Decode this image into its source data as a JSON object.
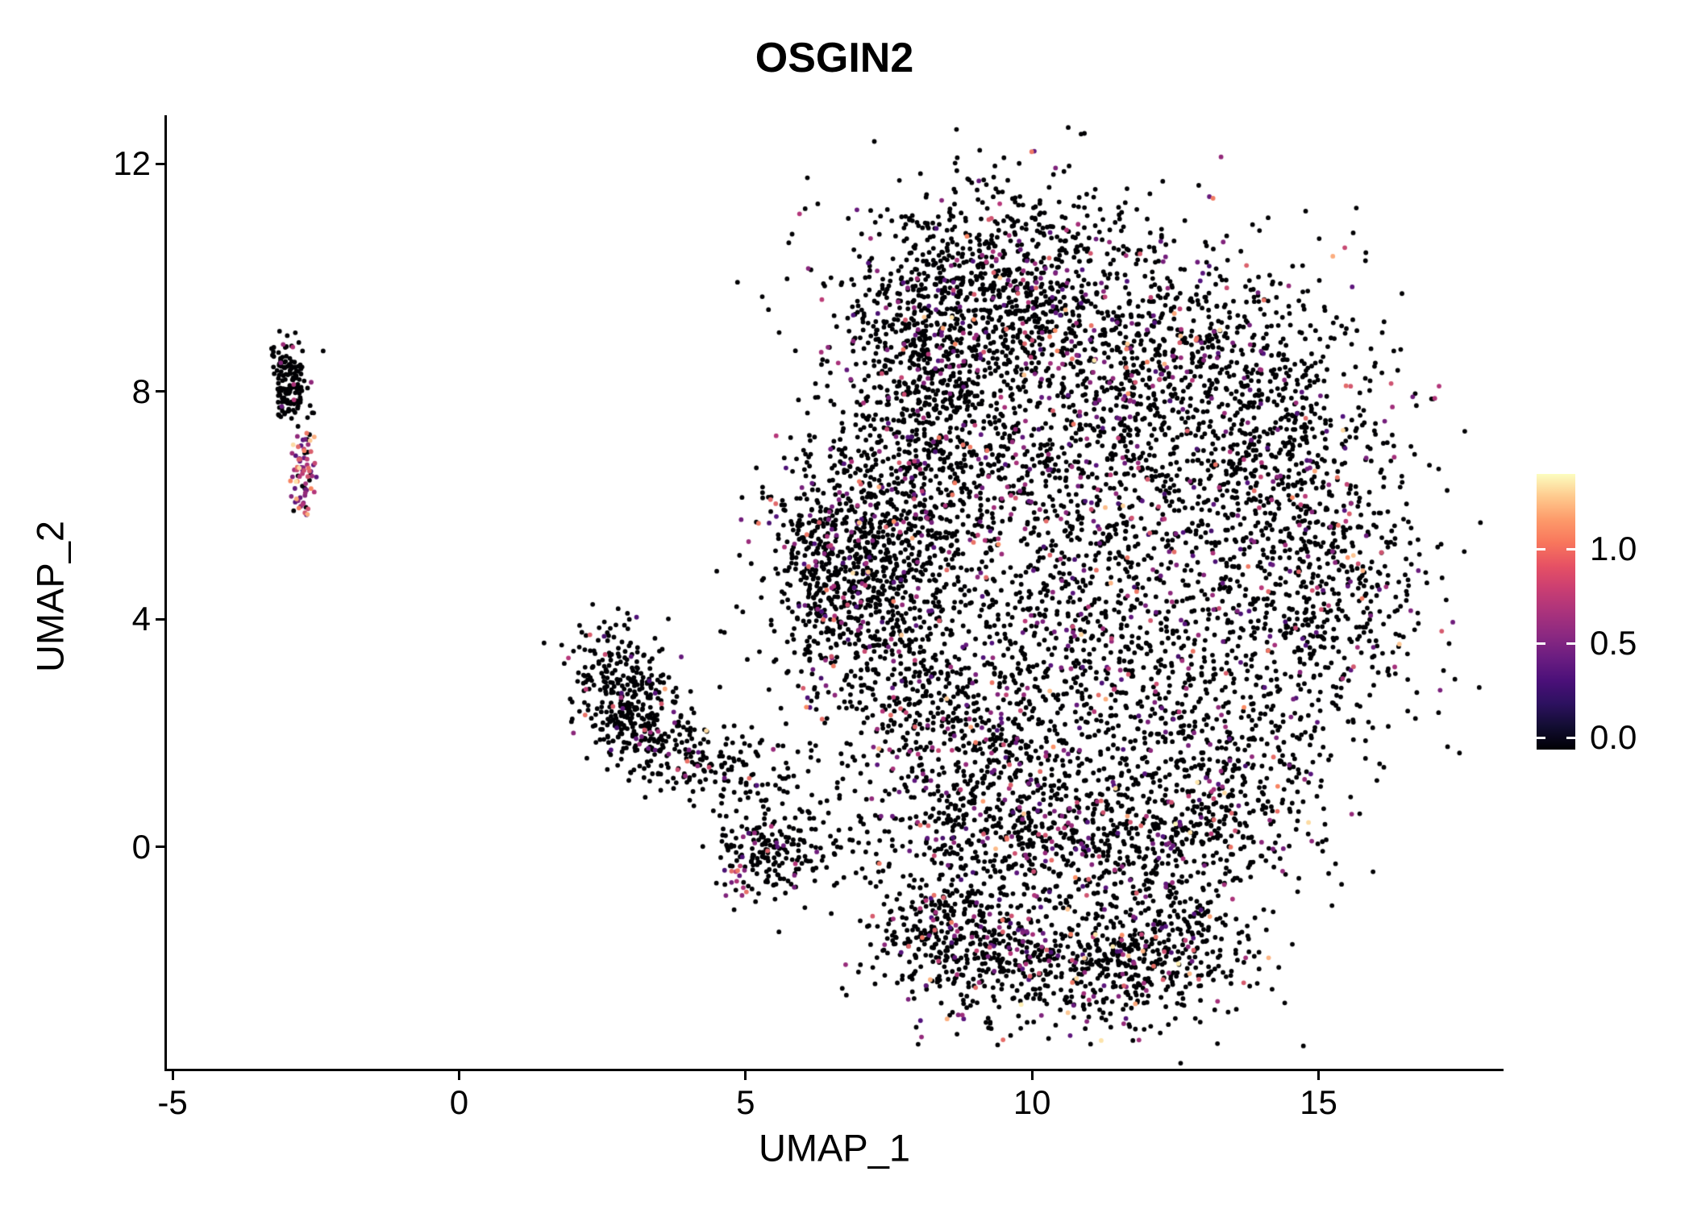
{
  "chart_data": {
    "type": "scatter",
    "title": "OSGIN2",
    "xlabel": "UMAP_1",
    "ylabel": "UMAP_2",
    "grid": false,
    "legend_position": "right",
    "xlim": [
      -5.1,
      18.2
    ],
    "ylim": [
      -3.9,
      12.85
    ],
    "x_ticks": {
      "values": [
        -5,
        0,
        5,
        10,
        15
      ],
      "labels": [
        "-5",
        "0",
        "5",
        "10",
        "15"
      ]
    },
    "y_ticks": {
      "values": [
        12,
        8,
        4,
        0
      ],
      "labels": [
        "12",
        "8",
        "4",
        "0"
      ]
    },
    "point_radius": 2.9,
    "seed": 42,
    "colormap": {
      "name": "magma",
      "vmax": 1.4,
      "anchors": [
        [
          0.0,
          "#000004"
        ],
        [
          0.25,
          "#51127C"
        ],
        [
          0.5,
          "#B63679"
        ],
        [
          0.75,
          "#FB8861"
        ],
        [
          1.0,
          "#FCFDBF"
        ]
      ]
    },
    "colorbar": {
      "labels": [
        "1.0",
        "0.5",
        "0.0"
      ],
      "values": [
        1.0,
        0.5,
        0.0
      ],
      "gradient": [
        "#FCFDBF",
        "#FEC98D",
        "#FD9A6A",
        "#F8765C",
        "#E65164",
        "#CA3E72",
        "#AB337C",
        "#8C2981",
        "#6B1D81",
        "#4B1079",
        "#2D1160",
        "#120D32",
        "#000004"
      ]
    },
    "expr_profiles": {
      "main": [
        [
          0.868,
          0,
          0
        ],
        [
          0.09,
          0.3,
          0.65
        ],
        [
          0.032,
          0.65,
          1.0
        ],
        [
          0.01,
          1.0,
          1.38
        ]
      ],
      "low": [
        [
          0.93,
          0,
          0
        ],
        [
          0.05,
          0.3,
          0.6
        ],
        [
          0.015,
          0.6,
          1.0
        ],
        [
          0.005,
          1.0,
          1.3
        ]
      ],
      "sparse0": [
        [
          0.95,
          0,
          0
        ],
        [
          0.03,
          0.3,
          0.6
        ],
        [
          0.015,
          0.6,
          1.0
        ],
        [
          0.005,
          1.0,
          1.3
        ]
      ],
      "high": [
        [
          0.22,
          0,
          0
        ],
        [
          0.55,
          0.35,
          0.7
        ],
        [
          0.17,
          0.7,
          1.05
        ],
        [
          0.06,
          1.05,
          1.38
        ]
      ]
    },
    "clusters": [
      {
        "name": "left-top",
        "cx": -2.97,
        "cy": 8.15,
        "sx": 0.16,
        "sy": 0.42,
        "rot": 10,
        "n": 150,
        "profile": "sparse0"
      },
      {
        "name": "left-tail",
        "cx": -2.73,
        "cy": 6.55,
        "sx": 0.12,
        "sy": 0.38,
        "rot": 0,
        "n": 75,
        "profile": "high"
      },
      {
        "name": "mid-a",
        "cx": 2.8,
        "cy": 2.7,
        "sx": 0.42,
        "sy": 0.6,
        "rot": 15,
        "n": 270,
        "profile": "low"
      },
      {
        "name": "mid-b",
        "cx": 3.6,
        "cy": 1.85,
        "sx": 0.8,
        "sy": 0.38,
        "rot": -28,
        "n": 210,
        "profile": "low"
      },
      {
        "name": "mid-bridge",
        "cx": 5.0,
        "cy": 1.3,
        "sx": 0.8,
        "sy": 0.35,
        "rot": -10,
        "n": 80,
        "profile": "low"
      },
      {
        "name": "small-bottom",
        "cx": 5.45,
        "cy": -0.1,
        "sx": 0.5,
        "sy": 0.35,
        "rot": 0,
        "n": 180,
        "profile": "low"
      },
      {
        "name": "magenta-spot",
        "cx": 4.85,
        "cy": -0.6,
        "sx": 0.12,
        "sy": 0.14,
        "rot": 0,
        "n": 15,
        "profile": "high"
      },
      {
        "name": "main-upper",
        "cx": 9.6,
        "cy": 9.9,
        "sx": 1.35,
        "sy": 0.95,
        "rot": 0,
        "n": 900,
        "profile": "main"
      },
      {
        "name": "main-upper-left",
        "cx": 8.2,
        "cy": 8.7,
        "sx": 0.85,
        "sy": 0.85,
        "rot": 0,
        "n": 420,
        "profile": "main"
      },
      {
        "name": "main-upper-right",
        "cx": 12.3,
        "cy": 8.4,
        "sx": 1.4,
        "sy": 1.1,
        "rot": 0,
        "n": 600,
        "profile": "main"
      },
      {
        "name": "main-left-upper",
        "cx": 7.9,
        "cy": 6.3,
        "sx": 0.9,
        "sy": 1.15,
        "rot": 0,
        "n": 570,
        "profile": "main"
      },
      {
        "name": "main-left-arm",
        "cx": 6.6,
        "cy": 5.1,
        "sx": 0.65,
        "sy": 0.85,
        "rot": 0,
        "n": 470,
        "profile": "main"
      },
      {
        "name": "main-left-mid",
        "cx": 7.3,
        "cy": 3.6,
        "sx": 0.8,
        "sy": 0.95,
        "rot": 0,
        "n": 380,
        "profile": "main"
      },
      {
        "name": "main-center",
        "cx": 10.3,
        "cy": 6.1,
        "sx": 1.45,
        "sy": 1.4,
        "rot": 0,
        "n": 750,
        "profile": "main"
      },
      {
        "name": "main-right-upper",
        "cx": 14.0,
        "cy": 6.9,
        "sx": 1.3,
        "sy": 1.6,
        "rot": 0,
        "n": 720,
        "profile": "main"
      },
      {
        "name": "main-right",
        "cx": 15.0,
        "cy": 4.3,
        "sx": 0.95,
        "sy": 1.3,
        "rot": 0,
        "n": 470,
        "profile": "main"
      },
      {
        "name": "main-center-low",
        "cx": 11.6,
        "cy": 3.2,
        "sx": 1.7,
        "sy": 1.2,
        "rot": 0,
        "n": 700,
        "profile": "main"
      },
      {
        "name": "main-low-left",
        "cx": 9.0,
        "cy": 1.7,
        "sx": 1.1,
        "sy": 1.0,
        "rot": 0,
        "n": 480,
        "profile": "main"
      },
      {
        "name": "main-bottom-band",
        "cx": 10.3,
        "cy": 0.1,
        "sx": 1.9,
        "sy": 0.65,
        "rot": 0,
        "n": 700,
        "profile": "main"
      },
      {
        "name": "main-bottom-right",
        "cx": 13.2,
        "cy": 0.9,
        "sx": 1.0,
        "sy": 0.9,
        "rot": 0,
        "n": 380,
        "profile": "main"
      },
      {
        "name": "lobe-left",
        "cx": 8.5,
        "cy": -1.6,
        "sx": 0.7,
        "sy": 0.55,
        "rot": 0,
        "n": 260,
        "profile": "main"
      },
      {
        "name": "lobe-center",
        "cx": 10.6,
        "cy": -2.1,
        "sx": 1.3,
        "sy": 0.6,
        "rot": 0,
        "n": 560,
        "profile": "main"
      },
      {
        "name": "lobe-right",
        "cx": 12.5,
        "cy": -1.7,
        "sx": 0.75,
        "sy": 0.6,
        "rot": 0,
        "n": 230,
        "profile": "main"
      }
    ]
  }
}
